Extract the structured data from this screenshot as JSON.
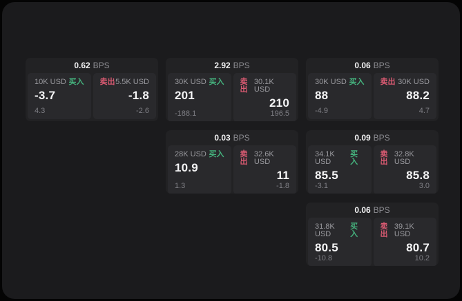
{
  "colors": {
    "buy_green": "#45b37e",
    "sell_rose": "#da5a72",
    "surface": "#1b1b1d",
    "card": "#222224",
    "panel": "#29292c"
  },
  "cards": [
    {
      "bps_value": "0.62",
      "bps_label": "BPS",
      "buy": {
        "size": "10K USD",
        "side_label": "买入",
        "value": "-3.7",
        "sub": "4.3"
      },
      "sell": {
        "side_label": "卖出",
        "size": "5.5K USD",
        "value": "-1.8",
        "sub": "-2.6"
      }
    },
    {
      "bps_value": "2.92",
      "bps_label": "BPS",
      "buy": {
        "size": "30K USD",
        "side_label": "买入",
        "value": "201",
        "sub": "-188.1"
      },
      "sell": {
        "side_label": "卖出",
        "size": "30.1K USD",
        "value": "210",
        "sub": "196.5"
      }
    },
    {
      "bps_value": "0.06",
      "bps_label": "BPS",
      "buy": {
        "size": "30K USD",
        "side_label": "买入",
        "value": "88",
        "sub": "-4.9"
      },
      "sell": {
        "side_label": "卖出",
        "size": "30K USD",
        "value": "88.2",
        "sub": "4.7"
      }
    },
    {
      "bps_value": "0.03",
      "bps_label": "BPS",
      "buy": {
        "size": "28K USD",
        "side_label": "买入",
        "value": "10.9",
        "sub": "1.3"
      },
      "sell": {
        "side_label": "卖出",
        "size": "32.6K USD",
        "value": "11",
        "sub": "-1.8"
      }
    },
    {
      "bps_value": "0.09",
      "bps_label": "BPS",
      "buy": {
        "size": "34.1K USD",
        "side_label": "买入",
        "value": "85.5",
        "sub": "-3.1"
      },
      "sell": {
        "side_label": "卖出",
        "size": "32.8K USD",
        "value": "85.8",
        "sub": "3.0"
      }
    },
    {
      "bps_value": "0.06",
      "bps_label": "BPS",
      "buy": {
        "size": "31.8K USD",
        "side_label": "买入",
        "value": "80.5",
        "sub": "-10.8"
      },
      "sell": {
        "side_label": "卖出",
        "size": "39.1K USD",
        "value": "80.7",
        "sub": "10.2"
      }
    }
  ]
}
